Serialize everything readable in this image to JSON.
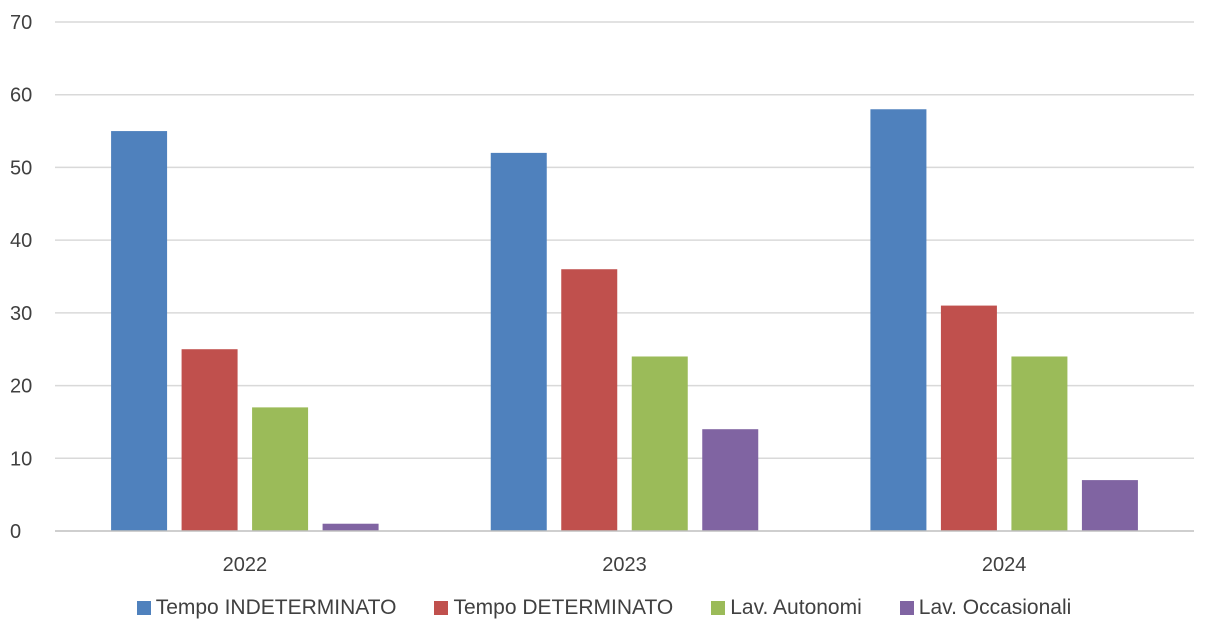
{
  "chart_data": {
    "type": "bar",
    "categories": [
      "2022",
      "2023",
      "2024"
    ],
    "series": [
      {
        "name": "Tempo INDETERMINATO",
        "values": [
          55,
          52,
          58
        ],
        "color": "#4F81BD"
      },
      {
        "name": "Tempo DETERMINATO",
        "values": [
          25,
          36,
          31
        ],
        "color": "#C0504D"
      },
      {
        "name": "Lav. Autonomi",
        "values": [
          17,
          24,
          24
        ],
        "color": "#9BBB59"
      },
      {
        "name": "Lav. Occasionali",
        "values": [
          1,
          14,
          7
        ],
        "color": "#8064A2"
      }
    ],
    "ylim": [
      0,
      70
    ],
    "yticks": [
      0,
      10,
      20,
      30,
      40,
      50,
      60,
      70
    ],
    "grid": true,
    "legend_position": "bottom",
    "title": "",
    "xlabel": "",
    "ylabel": ""
  }
}
